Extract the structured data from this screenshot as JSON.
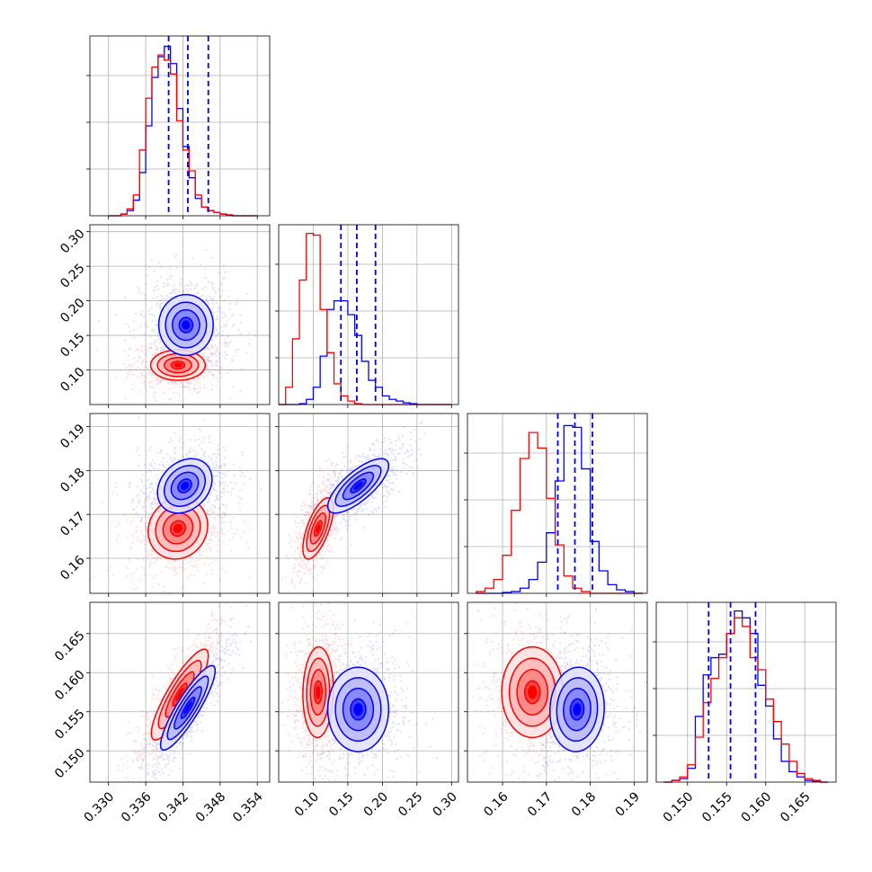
{
  "chart_data": {
    "type": "corner",
    "colors": {
      "series_a": "#0000ff",
      "series_b": "#ff0000",
      "grid": "#b0b0b0"
    },
    "series": [
      {
        "color": "#0000ff"
      },
      {
        "color": "#ff0000"
      }
    ],
    "parameters": [
      {
        "range": [
          0.327,
          0.356
        ],
        "ticks": [
          0.33,
          0.336,
          0.342,
          0.348,
          0.354
        ],
        "tick_labels": [
          "0.330",
          "0.336",
          "0.342",
          "0.348",
          "0.354"
        ],
        "quantiles": [
          0.3397,
          0.3428,
          0.3461
        ],
        "hist_bins": [
          0.33,
          0.354,
          24
        ],
        "hist_a": [
          0,
          0,
          0.01,
          0.03,
          0.09,
          0.25,
          0.52,
          0.8,
          0.92,
          0.98,
          0.88,
          0.62,
          0.4,
          0.22,
          0.1,
          0.05,
          0.03,
          0.02,
          0.01,
          0.005,
          0,
          0,
          0,
          0
        ],
        "hist_b": [
          0,
          0,
          0.01,
          0.04,
          0.12,
          0.38,
          0.68,
          0.86,
          0.93,
          0.9,
          0.82,
          0.55,
          0.38,
          0.26,
          0.12,
          0.05,
          0.03,
          0.02,
          0.01,
          0.005,
          0,
          0,
          0,
          0
        ]
      },
      {
        "range": [
          0.05,
          0.31
        ],
        "ticks": [
          0.1,
          0.15,
          0.2,
          0.25,
          0.3
        ],
        "tick_labels": [
          "0.10",
          "0.15",
          "0.20",
          "0.25",
          "0.30"
        ],
        "quantiles": [
          0.14,
          0.163,
          0.19
        ],
        "hist_bins": [
          0.05,
          0.3,
          25
        ],
        "hist_a": [
          0,
          0,
          0,
          0.005,
          0.03,
          0.1,
          0.28,
          0.55,
          0.6,
          0.6,
          0.52,
          0.4,
          0.25,
          0.14,
          0.1,
          0.05,
          0.03,
          0.02,
          0.01,
          0.005,
          0,
          0,
          0,
          0,
          0
        ],
        "hist_b": [
          0.0,
          0.1,
          0.38,
          0.72,
          0.99,
          0.98,
          0.55,
          0.3,
          0.12,
          0.05,
          0.02,
          0.005,
          0,
          0,
          0,
          0,
          0,
          0,
          0,
          0,
          0,
          0,
          0,
          0,
          0
        ]
      },
      {
        "range": [
          0.152,
          0.193
        ],
        "ticks": [
          0.16,
          0.17,
          0.18,
          0.19
        ],
        "tick_labels": [
          "0.16",
          "0.17",
          "0.18",
          "0.19"
        ],
        "quantiles": [
          0.1726,
          0.1765,
          0.1805
        ],
        "hist_bins": [
          0.154,
          0.192,
          19
        ],
        "hist_a": [
          0,
          0,
          0,
          0.005,
          0.01,
          0.03,
          0.08,
          0.18,
          0.35,
          0.65,
          0.97,
          0.96,
          0.72,
          0.3,
          0.13,
          0.05,
          0.02,
          0.01,
          0
        ],
        "hist_b": [
          0.01,
          0.03,
          0.08,
          0.22,
          0.48,
          0.78,
          0.93,
          0.84,
          0.55,
          0.28,
          0.1,
          0.03,
          0.01,
          0,
          0,
          0,
          0,
          0,
          0
        ]
      },
      {
        "range": [
          0.146,
          0.169
        ],
        "ticks": [
          0.15,
          0.155,
          0.16,
          0.165
        ],
        "tick_labels": [
          "0.150",
          "0.155",
          "0.160",
          "0.165"
        ],
        "quantiles": [
          0.1527,
          0.1555,
          0.1587
        ],
        "hist_bins": [
          0.147,
          0.168,
          21
        ],
        "hist_a": [
          0,
          0.01,
          0.02,
          0.08,
          0.38,
          0.62,
          0.72,
          0.74,
          0.86,
          0.99,
          0.95,
          0.86,
          0.56,
          0.44,
          0.25,
          0.12,
          0.06,
          0.03,
          0.01,
          0.005,
          0
        ],
        "hist_b": [
          0,
          0.01,
          0.03,
          0.1,
          0.26,
          0.46,
          0.6,
          0.72,
          0.86,
          0.95,
          0.9,
          0.72,
          0.65,
          0.48,
          0.35,
          0.22,
          0.12,
          0.05,
          0.02,
          0.01,
          0
        ]
      }
    ],
    "pairs": [
      {
        "row": 1,
        "col": 0,
        "a": {
          "mx": 0.3425,
          "my": 0.165,
          "sx": 0.0022,
          "sy": 0.022,
          "rho": 0.0
        },
        "b": {
          "mx": 0.3412,
          "my": 0.107,
          "sx": 0.0022,
          "sy": 0.011,
          "rho": 0.0
        }
      },
      {
        "row": 2,
        "col": 0,
        "a": {
          "mx": 0.3423,
          "my": 0.1765,
          "sx": 0.0022,
          "sy": 0.0031,
          "rho": 0.25
        },
        "b": {
          "mx": 0.3412,
          "my": 0.1668,
          "sx": 0.0024,
          "sy": 0.0035,
          "rho": 0.1
        }
      },
      {
        "row": 2,
        "col": 1,
        "a": {
          "mx": 0.165,
          "my": 0.1765,
          "sx": 0.022,
          "sy": 0.0031,
          "rho": 0.75
        },
        "b": {
          "mx": 0.107,
          "my": 0.1668,
          "sx": 0.011,
          "sy": 0.0035,
          "rho": 0.65
        }
      },
      {
        "row": 3,
        "col": 0,
        "a": {
          "mx": 0.3428,
          "my": 0.1555,
          "sx": 0.0022,
          "sy": 0.0027,
          "rho": 0.88
        },
        "b": {
          "mx": 0.3415,
          "my": 0.1572,
          "sx": 0.0023,
          "sy": 0.0029,
          "rho": 0.86
        }
      },
      {
        "row": 3,
        "col": 1,
        "a": {
          "mx": 0.165,
          "my": 0.1553,
          "sx": 0.022,
          "sy": 0.0027,
          "rho": 0.0
        },
        "b": {
          "mx": 0.107,
          "my": 0.1575,
          "sx": 0.011,
          "sy": 0.0029,
          "rho": 0.05
        }
      },
      {
        "row": 3,
        "col": 2,
        "a": {
          "mx": 0.177,
          "my": 0.1553,
          "sx": 0.0031,
          "sy": 0.0027,
          "rho": 0.05
        },
        "b": {
          "mx": 0.1668,
          "my": 0.1575,
          "sx": 0.0035,
          "sy": 0.0029,
          "rho": 0.0
        }
      }
    ],
    "contour_levels_sigma": [
      0.5,
      1.0,
      1.5,
      2.0
    ],
    "grid": true,
    "legend": "none",
    "title": "",
    "xlabel": "",
    "ylabel": ""
  }
}
